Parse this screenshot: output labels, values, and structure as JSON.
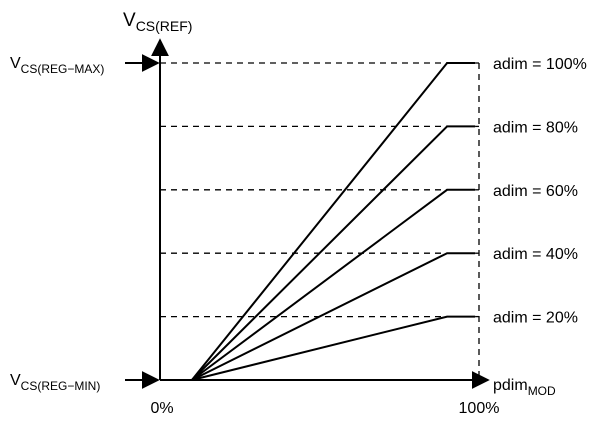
{
  "chart_data": {
    "type": "line",
    "y_axis": {
      "label_main": "V",
      "label_sub": "CS(REF)"
    },
    "x_axis": {
      "label_main": "pdim",
      "label_sub": "MOD",
      "tick_labels": [
        "0%",
        "100%"
      ],
      "range": [
        0,
        100
      ]
    },
    "y_markers": [
      {
        "main": "V",
        "sub": "CS(REG−MAX)",
        "value": 100
      },
      {
        "main": "V",
        "sub": "CS(REG−MIN)",
        "value": 0
      }
    ],
    "ylim": [
      0,
      100
    ],
    "min_flat_end": 10,
    "ramp_end": 90,
    "series": [
      {
        "name": "adim = 100%",
        "level": 100
      },
      {
        "name": "adim = 80%",
        "level": 80
      },
      {
        "name": "adim = 60%",
        "level": 60
      },
      {
        "name": "adim = 40%",
        "level": 40
      },
      {
        "name": "adim = 20%",
        "level": 20
      }
    ],
    "gridlines": "dashed",
    "legend": "right"
  }
}
